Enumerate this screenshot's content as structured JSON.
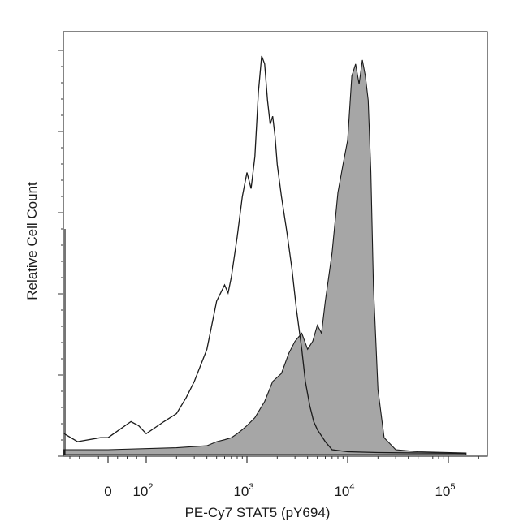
{
  "chart_data": {
    "type": "area",
    "xlabel": "PE-Cy7 STAT5 (pY694)",
    "ylabel": "Relative Cell Count",
    "x_scale": "biexponential",
    "x_ticks": [
      {
        "label": "0",
        "value": 0
      },
      {
        "label": "10",
        "exp": "2",
        "value": 100
      },
      {
        "label": "10",
        "exp": "3",
        "value": 1000
      },
      {
        "label": "10",
        "exp": "4",
        "value": 10000
      },
      {
        "label": "10",
        "exp": "5",
        "value": 100000
      }
    ],
    "y_range": [
      0,
      100
    ],
    "grid": false,
    "legend": "none",
    "colors": {
      "filled_series": "#a6a6a6",
      "outline": "#1a1a1a",
      "frame": "#333333"
    },
    "series": [
      {
        "style": "outline",
        "x": [
          -150,
          -80,
          -20,
          0,
          30,
          60,
          80,
          100,
          150,
          200,
          250,
          300,
          400,
          500,
          600,
          650,
          700,
          800,
          900,
          1000,
          1100,
          1200,
          1300,
          1400,
          1500,
          1600,
          1700,
          1800,
          1900,
          2000,
          2200,
          2500,
          2800,
          3100,
          3500,
          3800,
          4200,
          4600,
          5000,
          6000,
          7000,
          10000,
          20000,
          50000,
          150000
        ],
        "y": [
          5,
          3,
          4,
          4,
          6,
          8,
          7,
          5,
          8,
          10,
          14,
          18,
          26,
          38,
          42,
          40,
          44,
          54,
          64,
          70,
          66,
          74,
          90,
          99,
          97,
          88,
          82,
          84,
          79,
          72,
          64,
          55,
          46,
          36,
          26,
          18,
          12,
          8,
          6,
          3,
          1,
          0.5,
          0.3,
          0.2,
          0.1
        ]
      },
      {
        "style": "filled",
        "x": [
          -150,
          0,
          200,
          400,
          500,
          600,
          700,
          800,
          900,
          1000,
          1200,
          1500,
          1800,
          2200,
          2600,
          3000,
          3500,
          4000,
          4500,
          5000,
          5500,
          6000,
          7000,
          8000,
          9000,
          10000,
          11000,
          12000,
          13000,
          14000,
          15000,
          16000,
          17000,
          18000,
          20000,
          23000,
          30000,
          50000,
          150000
        ],
        "y": [
          1,
          1,
          1.5,
          2,
          3,
          3.5,
          4,
          5,
          6,
          7,
          9,
          13,
          18,
          20,
          25,
          28,
          30,
          26,
          28,
          32,
          30,
          38,
          50,
          65,
          72,
          78,
          94,
          97,
          92,
          98,
          94,
          88,
          70,
          42,
          16,
          4,
          1,
          0.5,
          0.2
        ]
      }
    ]
  }
}
